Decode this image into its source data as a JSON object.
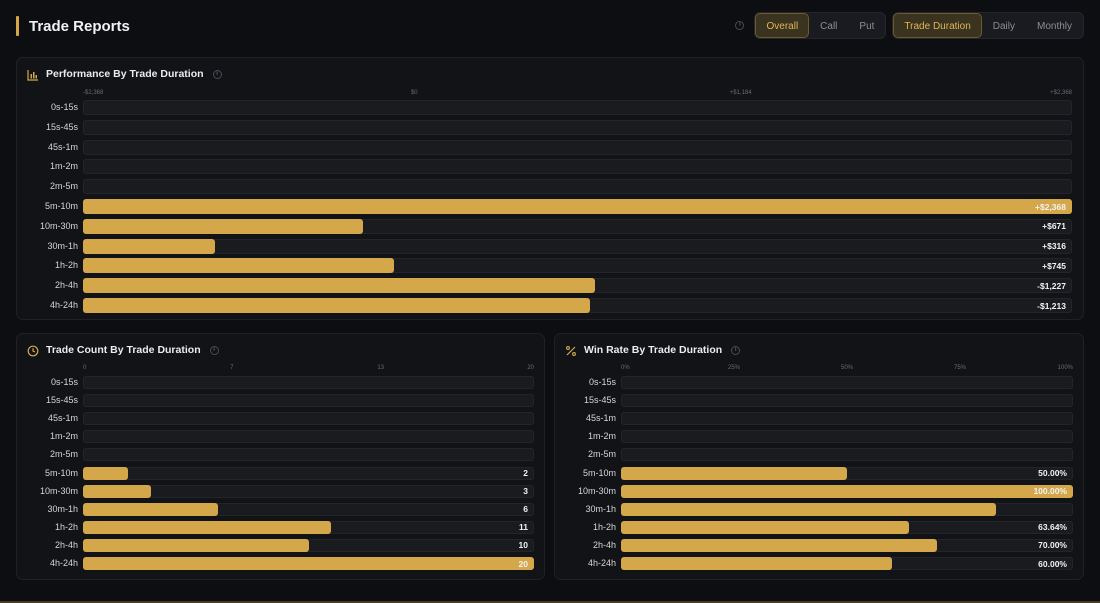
{
  "header": {
    "title": "Trade Reports",
    "filters": [
      "Overall",
      "Call",
      "Put"
    ],
    "filter_active": 0,
    "groupings": [
      "Trade Duration",
      "Daily",
      "Monthly"
    ],
    "grouping_active": 0
  },
  "colors": {
    "accent": "#d4a84a",
    "panel": "#121317",
    "track": "#1a1b1f"
  },
  "categories": [
    "0s-15s",
    "15s-45s",
    "45s-1m",
    "1m-2m",
    "2m-5m",
    "5m-10m",
    "10m-30m",
    "30m-1h",
    "1h-2h",
    "2h-4h",
    "4h-24h"
  ],
  "performance": {
    "title": "Performance By Trade Duration",
    "icon": "bar-chart-icon",
    "ticks": [
      "-$2,368",
      "$0",
      "+$1,184",
      "+$2,368"
    ],
    "value_labels": [
      "",
      "",
      "",
      "",
      "",
      "+$2,368",
      "+$671",
      "+$316",
      "+$745",
      "-$1,227",
      "-$1,213"
    ]
  },
  "trade_count": {
    "title": "Trade Count By Trade Duration",
    "icon": "clock-icon",
    "ticks": [
      "0",
      "7",
      "13",
      "20"
    ],
    "value_labels": [
      "",
      "",
      "",
      "",
      "",
      "2",
      "3",
      "6",
      "11",
      "10",
      "20"
    ]
  },
  "win_rate": {
    "title": "Win Rate By Trade Duration",
    "icon": "percent-icon",
    "ticks": [
      "0%",
      "25%",
      "50%",
      "75%",
      "100%"
    ],
    "value_labels": [
      "",
      "",
      "",
      "",
      "",
      "50.00%",
      "100.00%",
      "",
      "63.64%",
      "70.00%",
      "60.00%"
    ]
  },
  "chart_data": [
    {
      "type": "bar",
      "title": "Performance By Trade Duration",
      "categories": [
        "0s-15s",
        "15s-45s",
        "45s-1m",
        "1m-2m",
        "2m-5m",
        "5m-10m",
        "10m-30m",
        "30m-1h",
        "1h-2h",
        "2h-4h",
        "4h-24h"
      ],
      "values": [
        null,
        null,
        null,
        null,
        null,
        2368,
        671,
        316,
        745,
        -1227,
        -1213
      ],
      "xlim": [
        -2368,
        2368
      ]
    },
    {
      "type": "bar",
      "title": "Trade Count By Trade Duration",
      "categories": [
        "0s-15s",
        "15s-45s",
        "45s-1m",
        "1m-2m",
        "2m-5m",
        "5m-10m",
        "10m-30m",
        "30m-1h",
        "1h-2h",
        "2h-4h",
        "4h-24h"
      ],
      "values": [
        null,
        null,
        null,
        null,
        null,
        2,
        3,
        6,
        11,
        10,
        20
      ],
      "xlim": [
        0,
        20
      ]
    },
    {
      "type": "bar",
      "title": "Win Rate By Trade Duration",
      "categories": [
        "0s-15s",
        "15s-45s",
        "45s-1m",
        "1m-2m",
        "2m-5m",
        "5m-10m",
        "10m-30m",
        "30m-1h",
        "1h-2h",
        "2h-4h",
        "4h-24h"
      ],
      "values": [
        null,
        null,
        null,
        null,
        null,
        50,
        100,
        83,
        63.64,
        70,
        60
      ],
      "xlim": [
        0,
        100
      ]
    }
  ]
}
